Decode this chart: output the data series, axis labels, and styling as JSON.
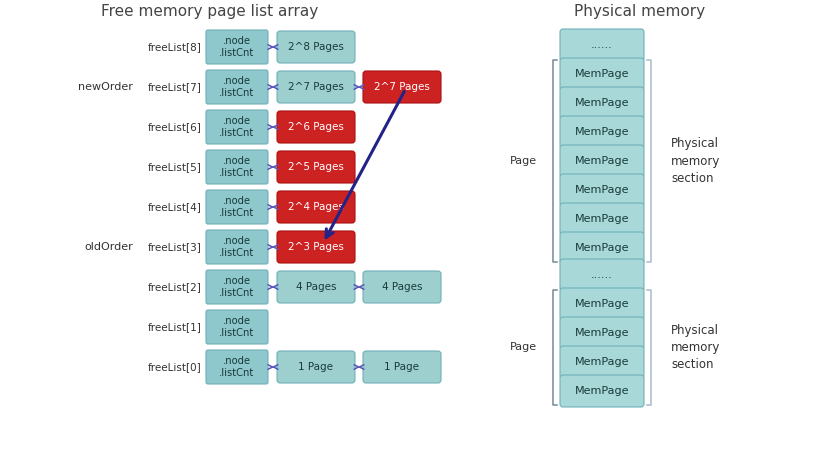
{
  "title_left": "Free memory page list array",
  "title_right": "Physical memory",
  "bg_color": "#ffffff",
  "teal_node": "#8ec8cc",
  "teal_page": "#9dcfcf",
  "teal_mem": "#a8d8d8",
  "red_color": "#cc2222",
  "freelist_labels": [
    "freeList[8]",
    "freeList[7]",
    "freeList[6]",
    "freeList[5]",
    "freeList[4]",
    "freeList[3]",
    "freeList[2]",
    "freeList[1]",
    "freeList[0]"
  ],
  "page_labels": [
    "2^8 Pages",
    "2^7 Pages",
    "2^6 Pages",
    "2^5 Pages",
    "2^4 Pages",
    "2^3 Pages",
    "4 Pages",
    "",
    "1 Page"
  ],
  "page2_labels": [
    "",
    "2^7 Pages",
    "",
    "",
    "",
    "",
    "4 Pages",
    "",
    "1 Page"
  ],
  "page_red": [
    false,
    false,
    true,
    true,
    true,
    true,
    false,
    false,
    false
  ],
  "page2_red": [
    false,
    true,
    false,
    false,
    false,
    false,
    false,
    false,
    false
  ],
  "newOrder_row": 1,
  "oldOrder_row": 5,
  "mempage_top": [
    "......",
    "MemPage",
    "MemPage",
    "MemPage",
    "MemPage",
    "MemPage",
    "MemPage",
    "MemPage"
  ],
  "mempage_bottom": [
    "......",
    "MemPage",
    "MemPage",
    "MemPage",
    "MemPage"
  ],
  "arrow_color": "#5555bb",
  "dark_arrow_color": "#222288",
  "label_color": "#333333",
  "node_text_color": "#1a3a3a",
  "teal_ec": "#70b0b8",
  "red_ec": "#aa1111"
}
